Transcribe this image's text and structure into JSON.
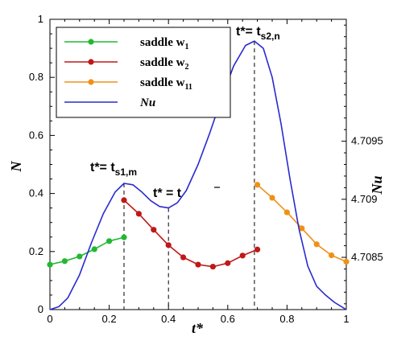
{
  "chart_data": {
    "type": "line",
    "x_axis": {
      "label": "t*",
      "range": [
        0,
        1
      ],
      "ticks": [
        0,
        0.2,
        0.4,
        0.6,
        0.8,
        1
      ],
      "tick_labels": [
        "0",
        "0.2",
        "0.4",
        "0.6",
        "0.8",
        "1"
      ]
    },
    "y_axis_left": {
      "label": "N",
      "range": [
        0,
        1
      ],
      "ticks": [
        0,
        0.2,
        0.4,
        0.6,
        0.8,
        1
      ],
      "tick_labels": [
        "0",
        "0.2",
        "0.4",
        "0.6",
        "0.8",
        "1"
      ]
    },
    "y_axis_right": {
      "label": "Nu",
      "tick_labels": [
        "4.7085",
        "4.709",
        "4.7095"
      ],
      "tick_positions_left_scale": [
        0.18,
        0.38,
        0.58
      ]
    },
    "legend": {
      "placement": "top-left",
      "entries": [
        {
          "label": "saddle w",
          "subscript": "1",
          "color": "#22b832",
          "marker": "circle"
        },
        {
          "label": "saddle w",
          "subscript": "2",
          "color": "#c01818",
          "marker": "circle"
        },
        {
          "label": "saddle w",
          "subscript": "11",
          "color": "#f09018",
          "marker": "circle"
        },
        {
          "label": "Nu",
          "color": "#2a2ad0",
          "marker": "none",
          "italic": true
        }
      ]
    },
    "series": [
      {
        "name": "saddle w1",
        "color": "#22b832",
        "x": [
          0.0,
          0.05,
          0.1,
          0.15,
          0.2,
          0.25
        ],
        "y": [
          0.155,
          0.167,
          0.183,
          0.208,
          0.236,
          0.249
        ]
      },
      {
        "name": "saddle w2",
        "color": "#c01818",
        "x": [
          0.25,
          0.3,
          0.35,
          0.4,
          0.45,
          0.5,
          0.55,
          0.6,
          0.65,
          0.7
        ],
        "y": [
          0.377,
          0.33,
          0.275,
          0.222,
          0.18,
          0.155,
          0.148,
          0.16,
          0.186,
          0.207
        ]
      },
      {
        "name": "saddle w11",
        "color": "#f09018",
        "x": [
          0.7,
          0.75,
          0.8,
          0.85,
          0.9,
          0.95,
          1.0
        ],
        "y": [
          0.43,
          0.385,
          0.335,
          0.28,
          0.225,
          0.187,
          0.165
        ]
      },
      {
        "name": "Nu",
        "color": "#2a2ad0",
        "x": [
          0.0,
          0.03,
          0.06,
          0.1,
          0.14,
          0.18,
          0.22,
          0.25,
          0.28,
          0.31,
          0.34,
          0.37,
          0.4,
          0.43,
          0.46,
          0.5,
          0.54,
          0.58,
          0.62,
          0.66,
          0.69,
          0.72,
          0.75,
          0.78,
          0.81,
          0.84,
          0.87,
          0.9,
          0.93,
          0.96,
          1.0
        ],
        "y": [
          0.0,
          0.01,
          0.04,
          0.12,
          0.23,
          0.33,
          0.405,
          0.435,
          0.43,
          0.405,
          0.375,
          0.355,
          0.35,
          0.368,
          0.41,
          0.5,
          0.61,
          0.73,
          0.84,
          0.91,
          0.925,
          0.9,
          0.8,
          0.64,
          0.45,
          0.28,
          0.15,
          0.08,
          0.05,
          0.025,
          0.0
        ]
      }
    ],
    "vertical_markers": [
      {
        "x": 0.25,
        "y_top": 0.435,
        "label_main": "t*= t",
        "label_sub": "s1,m"
      },
      {
        "x": 0.4,
        "y_top": 0.35,
        "label_main": "t* = t",
        "label_sub": ""
      },
      {
        "x": 0.69,
        "y_top": 0.925,
        "label_main": "t*= t",
        "label_sub": "s2,n"
      }
    ]
  }
}
